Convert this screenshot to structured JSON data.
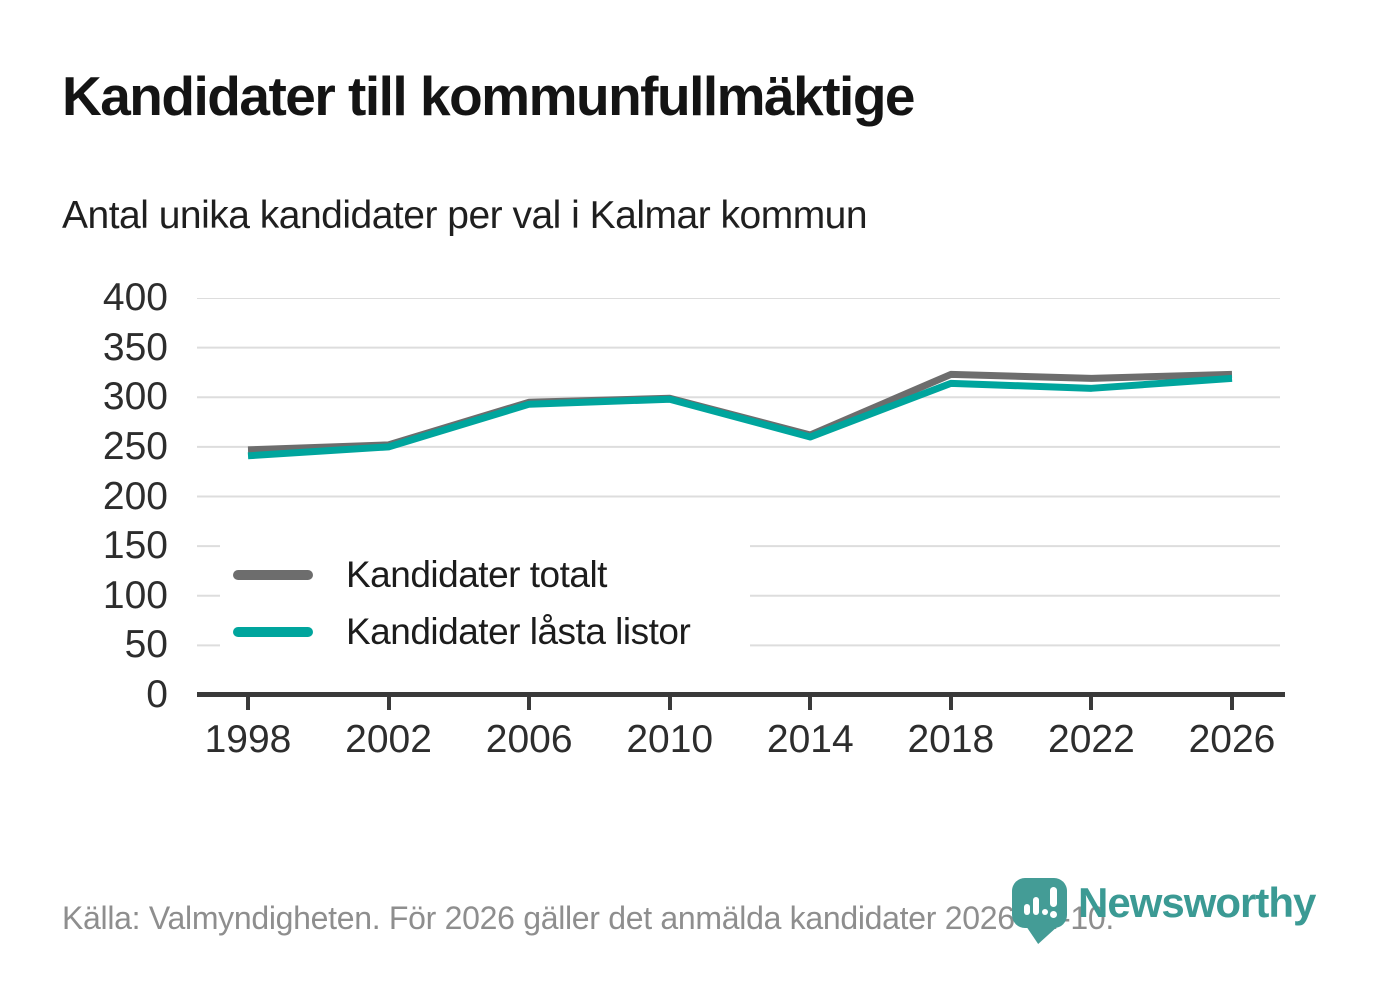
{
  "title": "Kandidater till kommunfullmäktige",
  "subtitle": "Antal unika kandidater per val i Kalmar kommun",
  "footer": {
    "source_text": "Källa: Valmyndigheten. För 2026 gäller det anmälda kandidater 2026-04-10."
  },
  "logo": {
    "name": "Newsworthy",
    "icon": "newsworthy-pin-barchart-icon",
    "color": "#3b9a94"
  },
  "colors": {
    "series_total": "#6d6d6d",
    "series_locked": "#00a59d",
    "grid": "#dddddd",
    "axis": "#3a3a3a",
    "tick_text": "#2d2d2d",
    "footer_text": "#8e8e8e"
  },
  "chart_data": {
    "type": "line",
    "x": [
      1998,
      2002,
      2006,
      2010,
      2014,
      2018,
      2022,
      2026
    ],
    "series": [
      {
        "name": "Kandidater totalt",
        "color": "#6d6d6d",
        "values": [
          247,
          252,
          295,
          299,
          262,
          323,
          319,
          323
        ]
      },
      {
        "name": "Kandidater låsta listor",
        "color": "#00a59d",
        "values": [
          241,
          250,
          293,
          298,
          260,
          314,
          309,
          319
        ]
      }
    ],
    "ylim": [
      0,
      400
    ],
    "yticks": [
      0,
      50,
      100,
      150,
      200,
      250,
      300,
      350,
      400
    ],
    "grid": true,
    "legend_position": "inside-left-bottom"
  }
}
